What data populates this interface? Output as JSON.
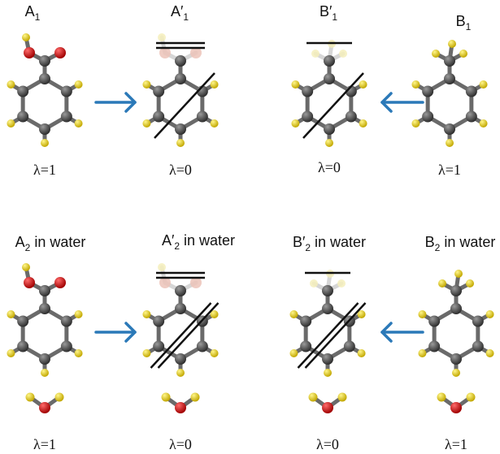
{
  "panels": [
    {
      "id": "A1",
      "base": "A",
      "sub": "1",
      "prime": false,
      "water": false,
      "mol": "acid",
      "state": "full",
      "lambda": "λ=1"
    },
    {
      "id": "A1p",
      "base": "A",
      "sub": "1",
      "prime": true,
      "water": false,
      "mol": "acid",
      "state": "ghost",
      "lambda": "λ=0"
    },
    {
      "id": "B1p",
      "base": "B",
      "sub": "1",
      "prime": true,
      "water": false,
      "mol": "methyl",
      "state": "ghost",
      "lambda": "λ=0"
    },
    {
      "id": "B1",
      "base": "B",
      "sub": "1",
      "prime": false,
      "water": false,
      "mol": "methyl",
      "state": "full",
      "lambda": "λ=1"
    },
    {
      "id": "A2",
      "base": "A",
      "sub": "2",
      "prime": false,
      "water": true,
      "mol": "acid",
      "state": "full",
      "lambda": "λ=1"
    },
    {
      "id": "A2p",
      "base": "A",
      "sub": "2",
      "prime": true,
      "water": true,
      "mol": "acid",
      "state": "ghost",
      "lambda": "λ=0"
    },
    {
      "id": "B2p",
      "base": "B",
      "sub": "2",
      "prime": true,
      "water": true,
      "mol": "methyl",
      "state": "ghost",
      "lambda": "λ=0"
    },
    {
      "id": "B2",
      "base": "B",
      "sub": "2",
      "prime": false,
      "water": true,
      "mol": "methyl",
      "state": "full",
      "lambda": "λ=1"
    }
  ],
  "water_suffix": " in water",
  "prime_mark": "′",
  "arrows": [
    {
      "id": "top-left",
      "direction": "right"
    },
    {
      "id": "top-right",
      "direction": "left"
    },
    {
      "id": "bottom-left",
      "direction": "right"
    },
    {
      "id": "bottom-right",
      "direction": "left"
    }
  ],
  "colors": {
    "carbon": "#4a4a4a",
    "hydrogen": "#e6d21e",
    "oxygen": "#d01818",
    "arrow": "#2b79b8",
    "strike": "#111111",
    "ghost_hydrogen": "#f5eebc",
    "ghost_oxygen": "#ecc3b8",
    "ghost_carbon": "#c9c9c9"
  }
}
